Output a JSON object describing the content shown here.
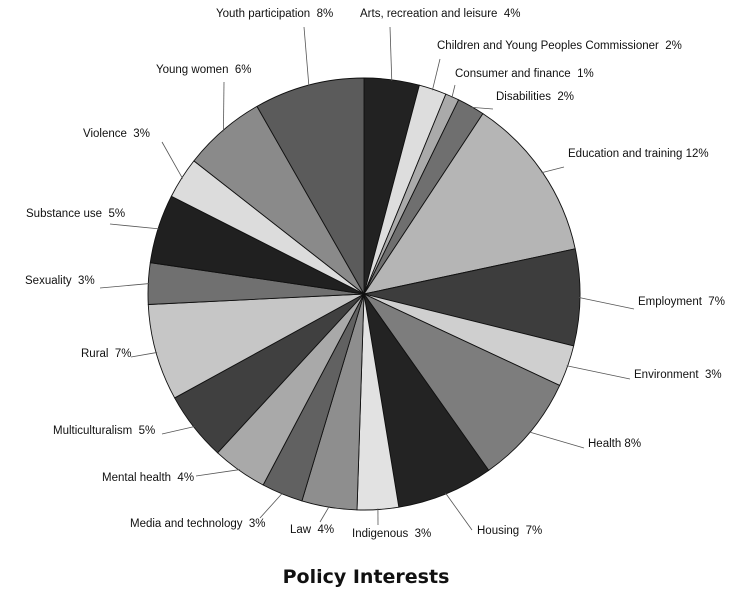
{
  "chart_data": {
    "type": "pie",
    "title": "Policy Interests",
    "unit": "%",
    "start": "12 o'clock",
    "direction": "clockwise",
    "slices": [
      {
        "label": "Arts, recreation and leisure",
        "value": 4,
        "color": "#222222"
      },
      {
        "label": "Children and Young Peoples Commissioner",
        "value": 2,
        "color": "#dddddd"
      },
      {
        "label": "Consumer and finance",
        "value": 1,
        "color": "#aaaaaa"
      },
      {
        "label": "Disabilities",
        "value": 2,
        "color": "#6f6f6f"
      },
      {
        "label": "Education and training",
        "value": 12,
        "color": "#b5b5b5"
      },
      {
        "label": "Employment",
        "value": 7,
        "color": "#3d3d3d"
      },
      {
        "label": "Environment",
        "value": 3,
        "color": "#cfcfcf"
      },
      {
        "label": "Health",
        "value": 8,
        "color": "#7d7d7d"
      },
      {
        "label": "Housing",
        "value": 7,
        "color": "#232323"
      },
      {
        "label": "Indigenous",
        "value": 3,
        "color": "#e2e2e2"
      },
      {
        "label": "Law",
        "value": 4,
        "color": "#8e8e8e"
      },
      {
        "label": "Media and technology",
        "value": 3,
        "color": "#616161"
      },
      {
        "label": "Mental health",
        "value": 4,
        "color": "#a9a9a9"
      },
      {
        "label": "Multiculturalism",
        "value": 5,
        "color": "#404040"
      },
      {
        "label": "Rural",
        "value": 7,
        "color": "#c6c6c6"
      },
      {
        "label": "Sexuality",
        "value": 3,
        "color": "#707070"
      },
      {
        "label": "Substance use",
        "value": 5,
        "color": "#202020"
      },
      {
        "label": "Violence",
        "value": 3,
        "color": "#dcdcdc"
      },
      {
        "label": "Young women",
        "value": 6,
        "color": "#8a8a8a"
      },
      {
        "label": "Youth participation",
        "value": 8,
        "color": "#5b5b5b"
      }
    ],
    "labels": [
      "Arts, recreation and leisure  4%",
      "Children and Young Peoples Commissioner  2%",
      "Consumer and finance  1%",
      "Disabilities  2%",
      "Education and training 12%",
      "Employment  7%",
      "Environment  3%",
      "Health 8%",
      "Housing  7%",
      "Indigenous  3%",
      "Law  4%",
      "Media and technology  3%",
      "Mental health  4%",
      "Multiculturalism  5%",
      "Rural  7%",
      "Sexuality  3%",
      "Substance use  5%",
      "Violence  3%",
      "Young women  6%",
      "Youth participation  8%"
    ]
  }
}
